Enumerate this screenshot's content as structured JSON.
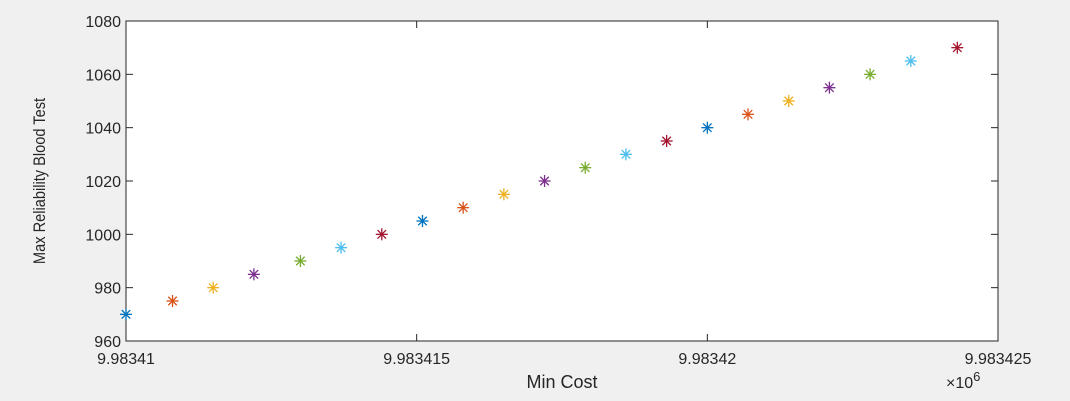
{
  "chart_data": {
    "type": "scatter",
    "title": "",
    "xlabel": "Min Cost",
    "ylabel": "Max Reliability Blood Test",
    "x_exponent_label": "×10",
    "x_exponent": "6",
    "xlim": [
      9.98341,
      9.983425
    ],
    "ylim": [
      960,
      1080
    ],
    "xticks": [
      9.98341,
      9.983415,
      9.98342,
      9.983425
    ],
    "xtick_labels": [
      "9.98341",
      "9.983415",
      "9.98342",
      "9.983425"
    ],
    "yticks": [
      960,
      980,
      1000,
      1020,
      1040,
      1060,
      1080
    ],
    "ytick_labels": [
      "960",
      "980",
      "1000",
      "1020",
      "1040",
      "1060",
      "1080"
    ],
    "grid": false,
    "legend": "none",
    "marker": "asterisk",
    "colors": [
      "#0072BD",
      "#D95319",
      "#EDB120",
      "#7E2F8E",
      "#77AC30",
      "#4DBEEE",
      "#A2142F"
    ],
    "points": [
      {
        "x": 9.98341,
        "y": 970
      },
      {
        "x": 9.9834108,
        "y": 975
      },
      {
        "x": 9.9834115,
        "y": 980
      },
      {
        "x": 9.9834122,
        "y": 985
      },
      {
        "x": 9.983413,
        "y": 990
      },
      {
        "x": 9.9834137,
        "y": 995
      },
      {
        "x": 9.9834144,
        "y": 1000
      },
      {
        "x": 9.9834151,
        "y": 1005
      },
      {
        "x": 9.9834158,
        "y": 1010
      },
      {
        "x": 9.9834165,
        "y": 1015
      },
      {
        "x": 9.9834172,
        "y": 1020
      },
      {
        "x": 9.9834179,
        "y": 1025
      },
      {
        "x": 9.9834186,
        "y": 1030
      },
      {
        "x": 9.9834193,
        "y": 1035
      },
      {
        "x": 9.98342,
        "y": 1040
      },
      {
        "x": 9.9834207,
        "y": 1045
      },
      {
        "x": 9.9834214,
        "y": 1050
      },
      {
        "x": 9.9834221,
        "y": 1055
      },
      {
        "x": 9.9834228,
        "y": 1060
      },
      {
        "x": 9.9834235,
        "y": 1065
      },
      {
        "x": 9.9834243,
        "y": 1070
      }
    ]
  }
}
